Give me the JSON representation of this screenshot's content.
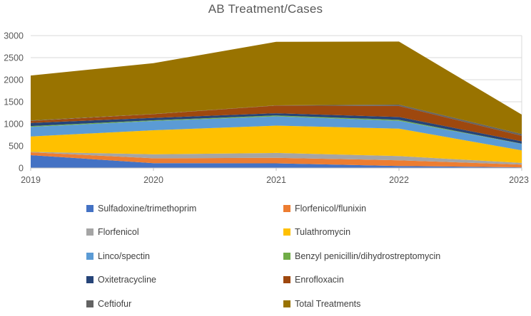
{
  "chart_data": {
    "type": "area",
    "stacked": true,
    "title": "AB Treatment/Cases",
    "x": [
      "2019",
      "2020",
      "2021",
      "2022",
      "2023"
    ],
    "xlabel": "",
    "ylabel": "",
    "ylim": [
      0,
      3000
    ],
    "ytick_step": 500,
    "grid": "horizontal",
    "legend_position": "bottom-two-columns",
    "series": [
      {
        "name": "Sulfadoxine/trimethoprim",
        "color": "#4472C4",
        "values": [
          290,
          110,
          105,
          45,
          15
        ]
      },
      {
        "name": "Florfenicol/flunixin",
        "color": "#ED7D31",
        "values": [
          65,
          110,
          125,
          130,
          60
        ]
      },
      {
        "name": "Florfenicol",
        "color": "#A5A5A5",
        "values": [
          10,
          90,
          110,
          95,
          40
        ]
      },
      {
        "name": "Tulathromycin",
        "color": "#FFC000",
        "values": [
          350,
          545,
          620,
          620,
          285
        ]
      },
      {
        "name": "Linco/spectin",
        "color": "#5B9BD5",
        "values": [
          215,
          210,
          210,
          180,
          145
        ]
      },
      {
        "name": "Benzyl penicillin/dihydrostreptomycin",
        "color": "#70AD47",
        "values": [
          20,
          15,
          20,
          20,
          5
        ]
      },
      {
        "name": "Oxitetracycline",
        "color": "#264478",
        "values": [
          70,
          55,
          50,
          65,
          55
        ]
      },
      {
        "name": "Enrofloxacin",
        "color": "#9E480E",
        "values": [
          45,
          85,
          175,
          250,
          125
        ]
      },
      {
        "name": "Ceftiofur",
        "color": "#636363",
        "values": [
          10,
          5,
          5,
          30,
          40
        ]
      },
      {
        "name": "Total Treatments",
        "color": "#997300",
        "values": [
          1020,
          1150,
          1440,
          1430,
          440
        ]
      }
    ]
  },
  "axis": {
    "y_tick_labels": [
      "0",
      "500",
      "1000",
      "1500",
      "2000",
      "2500",
      "3000"
    ],
    "x_tick_labels": [
      "2019",
      "2020",
      "2021",
      "2022",
      "2023"
    ]
  },
  "colors": {
    "title_text": "#595959",
    "axis_text": "#595959",
    "gridline": "#D9D9D9",
    "axis_line": "#BFBFBF",
    "background": "#FFFFFF"
  }
}
